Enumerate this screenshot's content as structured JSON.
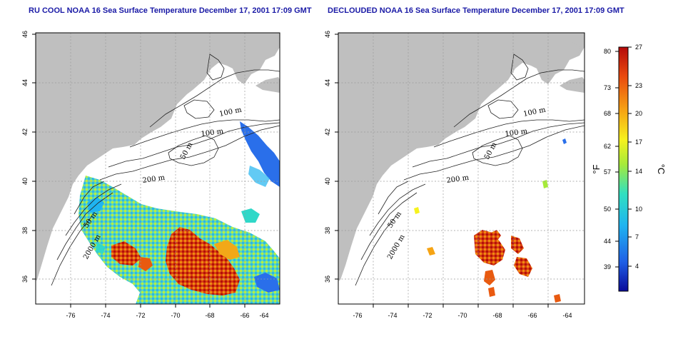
{
  "panels": [
    {
      "title": "RU COOL NOAA 16 Sea Surface Temperature December 17, 2001 17:09 GMT"
    },
    {
      "title": "DECLOUDED NOAA 16 Sea Surface Temperature December 17, 2001 17:09 GMT"
    }
  ],
  "axes": {
    "x_ticks": [
      "-76",
      "-74",
      "-72",
      "-70",
      "-68",
      "-66",
      "-64"
    ],
    "y_ticks": [
      "36",
      "38",
      "40",
      "42",
      "44",
      "46"
    ]
  },
  "contours": {
    "labels": [
      "100 m",
      "100 m",
      "50 m",
      "200 m",
      "50 m",
      "2000 m"
    ]
  },
  "colorbar": {
    "fahrenheit_ticks": [
      "80",
      "73",
      "68",
      "62",
      "57",
      "50",
      "44",
      "39"
    ],
    "celsius_ticks": [
      "27",
      "23",
      "20",
      "17",
      "14",
      "10",
      "7",
      "4"
    ],
    "fahrenheit_unit": "°F",
    "celsius_unit": "°C",
    "colors": [
      "#0a0a9a",
      "#1f5fe6",
      "#1fb4f0",
      "#30e0c0",
      "#a6ea3a",
      "#f6f21e",
      "#f6a414",
      "#ea4a0e",
      "#b40a0a"
    ]
  },
  "colors": {
    "land": "#bfbfbf",
    "water": "#ffffff",
    "grid": "#9a9a9a",
    "title": "#1a1aa6"
  }
}
